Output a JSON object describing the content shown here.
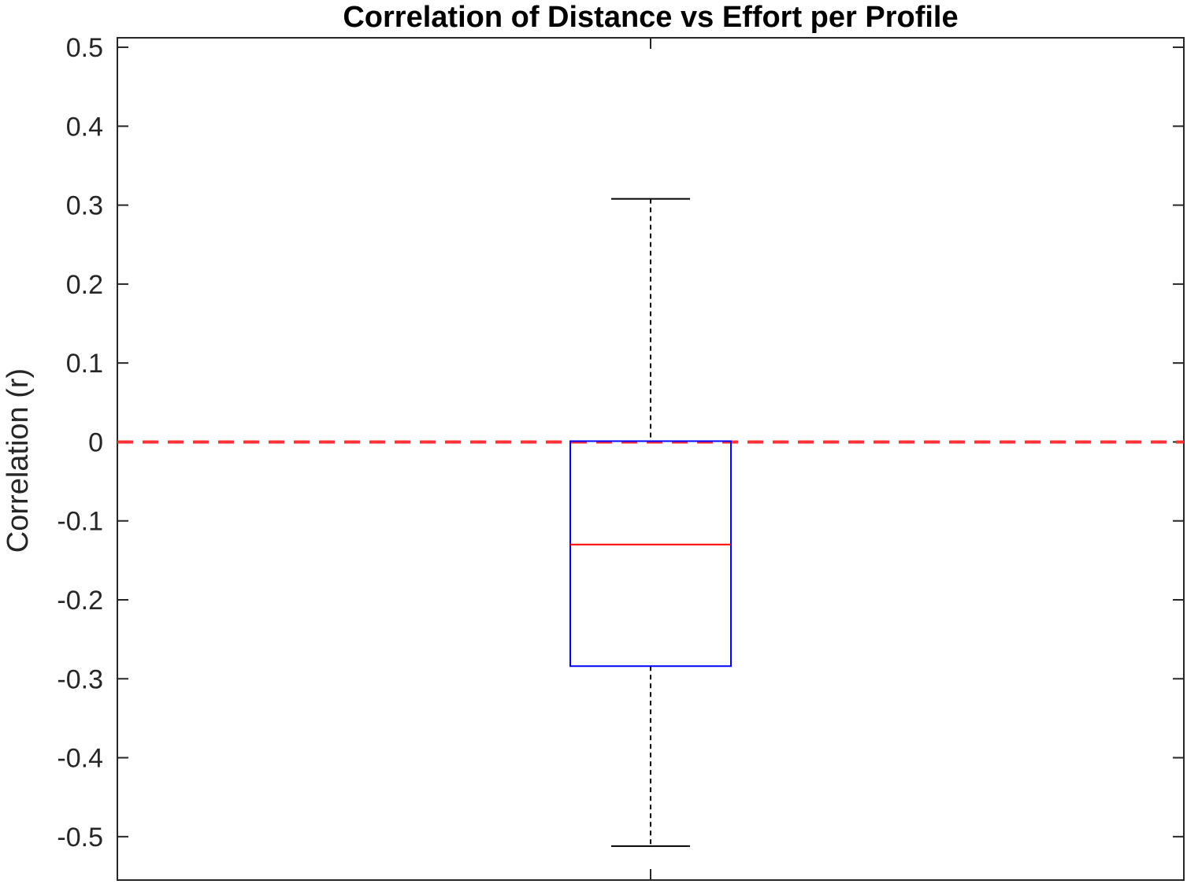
{
  "chart_data": {
    "type": "box",
    "title": "Correlation of Distance vs Effort per Profile",
    "xlabel": "",
    "ylabel": "Correlation (r)",
    "ylim": [
      -0.555,
      0.512
    ],
    "yticks": [
      0.5,
      0.4,
      0.3,
      0.2,
      0.1,
      0,
      -0.1,
      -0.2,
      -0.3,
      -0.4,
      -0.5
    ],
    "ytick_labels": [
      "0.5",
      "0.4",
      "0.3",
      "0.2",
      "0.1",
      "0",
      "-0.1",
      "-0.2",
      "-0.3",
      "-0.4",
      "-0.5"
    ],
    "grid": false,
    "box": {
      "whisker_high": 0.308,
      "q3": 0.001,
      "median": -0.13,
      "q1": -0.284,
      "whisker_low": -0.512
    },
    "reference_line": {
      "y": 0,
      "style": "dashed"
    },
    "colors": {
      "box": "#0000ff",
      "median": "#ff0000",
      "whisker": "#000000",
      "reference_line": "#ff3333",
      "axis": "#262626"
    }
  }
}
